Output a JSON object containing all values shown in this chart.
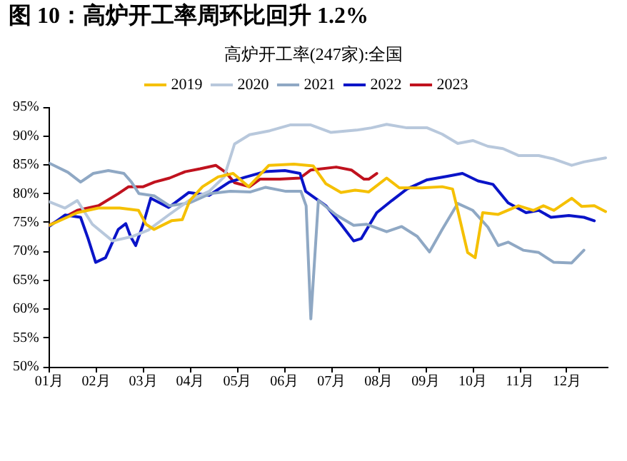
{
  "chart_data": {
    "type": "line",
    "title": "图 10：高炉开工率周环比回升 1.2%",
    "subtitle": "高炉开工率(247家):全国",
    "xlim": [
      1,
      12.85
    ],
    "xticks": [
      {
        "value": 1,
        "label": "01月"
      },
      {
        "value": 2,
        "label": "02月"
      },
      {
        "value": 3,
        "label": "03月"
      },
      {
        "value": 4,
        "label": "04月"
      },
      {
        "value": 5,
        "label": "05月"
      },
      {
        "value": 6,
        "label": "06月"
      },
      {
        "value": 7,
        "label": "07月"
      },
      {
        "value": 8,
        "label": "08月"
      },
      {
        "value": 9,
        "label": "09月"
      },
      {
        "value": 10,
        "label": "10月"
      },
      {
        "value": 11,
        "label": "11月"
      },
      {
        "value": 12,
        "label": "12月"
      }
    ],
    "ylim": [
      50,
      95
    ],
    "yticks": [
      {
        "value": 50,
        "label": "50%"
      },
      {
        "value": 55,
        "label": "55%"
      },
      {
        "value": 60,
        "label": "60%"
      },
      {
        "value": 65,
        "label": "65%"
      },
      {
        "value": 70,
        "label": "70%"
      },
      {
        "value": 75,
        "label": "75%"
      },
      {
        "value": 80,
        "label": "80%"
      },
      {
        "value": 85,
        "label": "85%"
      },
      {
        "value": 90,
        "label": "90%"
      },
      {
        "value": 95,
        "label": "95%"
      }
    ],
    "grid": false,
    "legend": "top",
    "marker": "none",
    "line_style": "solid",
    "series": [
      {
        "name": "2019",
        "color": "#f5c000",
        "x": [
          1,
          1.6,
          2.05,
          2.5,
          2.9,
          3.06,
          3.23,
          3.6,
          3.83,
          3.99,
          4.26,
          4.59,
          4.91,
          5.24,
          5.67,
          6.2,
          6.61,
          6.88,
          7.2,
          7.5,
          7.79,
          8.17,
          8.44,
          8.92,
          9.35,
          9.57,
          9.68,
          9.89,
          10.05,
          10.21,
          10.54,
          10.97,
          11.29,
          11.5,
          11.72,
          12.1,
          12.31,
          12.58,
          12.82
        ],
        "values": [
          74.5,
          76.7,
          77.5,
          77.5,
          77.1,
          74.7,
          73.8,
          75.3,
          75.5,
          78.8,
          81.2,
          82.9,
          83.5,
          81.2,
          84.9,
          85.1,
          84.8,
          81.7,
          80.2,
          80.6,
          80.3,
          82.7,
          81,
          81,
          81.2,
          80.8,
          77.1,
          69.8,
          68.9,
          76.7,
          76.4,
          77.9,
          77.1,
          77.9,
          77.1,
          79.2,
          77.8,
          77.9,
          76.9
        ]
      },
      {
        "name": "2020",
        "color": "#b8c8dc",
        "x": [
          1,
          1.34,
          1.6,
          1.92,
          2.35,
          2.78,
          3.11,
          3.54,
          3.97,
          4.4,
          4.72,
          4.94,
          5.26,
          5.69,
          6.12,
          6.56,
          6.99,
          7.53,
          7.85,
          8.17,
          8.6,
          9.03,
          9.35,
          9.68,
          10,
          10.32,
          10.64,
          10.97,
          11.4,
          11.72,
          12.1,
          12.36,
          12.82
        ],
        "values": [
          78.6,
          77.5,
          78.8,
          74.7,
          71.8,
          72.6,
          73.7,
          76.3,
          78.8,
          80.4,
          82.9,
          88.6,
          90.2,
          90.9,
          91.9,
          91.9,
          90.6,
          91,
          91.4,
          92,
          91.4,
          91.4,
          90.3,
          88.7,
          89.2,
          88.2,
          87.8,
          86.6,
          86.6,
          86,
          84.9,
          85.5,
          86.2
        ]
      },
      {
        "name": "2021",
        "color": "#8fa8c4",
        "x": [
          1,
          1.4,
          1.67,
          1.94,
          2.26,
          2.59,
          2.75,
          2.91,
          3.24,
          3.56,
          3.99,
          4.42,
          4.85,
          5.28,
          5.6,
          6.03,
          6.35,
          6.46,
          6.56,
          6.72,
          7.1,
          7.47,
          7.74,
          8.17,
          8.49,
          8.82,
          9.08,
          9.35,
          9.68,
          10,
          10.32,
          10.54,
          10.75,
          11.07,
          11.4,
          11.72,
          12.1,
          12.36
        ],
        "values": [
          85.3,
          83.7,
          82,
          83.5,
          84,
          83.5,
          82,
          80,
          79.6,
          77.9,
          78.4,
          80,
          80.4,
          80.3,
          81.1,
          80.4,
          80.4,
          77.9,
          58.3,
          78.8,
          76.3,
          74.5,
          74.7,
          73.4,
          74.3,
          72.6,
          69.9,
          73.8,
          78.3,
          77.1,
          74.2,
          71,
          71.6,
          70.2,
          69.8,
          68.1,
          68,
          70.2
        ]
      },
      {
        "name": "2022",
        "color": "#0a14c8",
        "x": [
          1,
          1.34,
          1.67,
          1.83,
          1.99,
          2.2,
          2.47,
          2.63,
          2.73,
          2.84,
          3,
          3.16,
          3.54,
          3.97,
          4.4,
          4.83,
          5.15,
          5.58,
          6.01,
          6.33,
          6.45,
          6.88,
          7.2,
          7.47,
          7.63,
          7.96,
          8.28,
          8.6,
          9.03,
          9.46,
          9.78,
          10.11,
          10.43,
          10.75,
          11.13,
          11.4,
          11.66,
          12.04,
          12.36,
          12.58
        ],
        "values": [
          74.3,
          76.3,
          75.9,
          72.2,
          68.1,
          68.9,
          73.8,
          74.8,
          72.6,
          71,
          74.7,
          79.2,
          77.6,
          80.2,
          79.7,
          82,
          82.8,
          83.8,
          84,
          83.5,
          80.4,
          77.9,
          74.7,
          71.8,
          72.2,
          76.7,
          78.8,
          80.8,
          82.4,
          83,
          83.5,
          82.2,
          81.6,
          78.4,
          76.7,
          77.1,
          75.9,
          76.2,
          75.9,
          75.3
        ]
      },
      {
        "name": "2023",
        "color": "#c0121e",
        "x": [
          1,
          1.6,
          2.05,
          2.47,
          2.69,
          3,
          3.24,
          3.56,
          3.89,
          4.21,
          4.54,
          4.75,
          4.94,
          5.26,
          5.48,
          5.9,
          6.33,
          6.56,
          7.1,
          7.42,
          7.69,
          7.79,
          7.96
        ],
        "values": [
          74.5,
          77.1,
          77.9,
          80,
          81.2,
          81.2,
          82,
          82.7,
          83.8,
          84.3,
          84.9,
          83.7,
          81.9,
          81.2,
          82.5,
          82.5,
          82.7,
          84.1,
          84.6,
          84.1,
          82.5,
          82.5,
          83.5
        ]
      }
    ]
  }
}
